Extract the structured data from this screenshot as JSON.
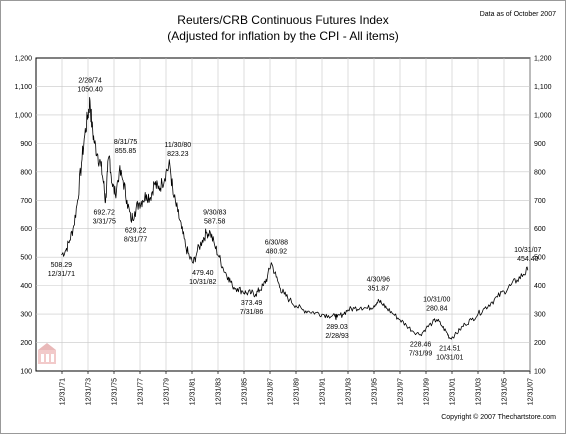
{
  "header": {
    "data_as_of": "Data as of October 2007",
    "copyright": "Copyright © 2007 Thechartstore.com"
  },
  "chart_data": {
    "type": "line",
    "title": "Reuters/CRB Continuous Futures Index",
    "subtitle": "(Adjusted for inflation by the CPI - All items)",
    "xlabel": "",
    "ylabel": "",
    "xlim": [
      1970.0,
      2008.0
    ],
    "ylim": [
      100,
      1200
    ],
    "y_ticks": [
      "1,200",
      "1,100",
      "1,000",
      "900",
      "800",
      "700",
      "600",
      "500",
      "400",
      "300",
      "200",
      "100"
    ],
    "x_ticks": [
      "12/31/71",
      "12/31/73",
      "12/31/75",
      "12/31/77",
      "12/31/79",
      "12/31/81",
      "12/31/83",
      "12/31/85",
      "12/31/87",
      "12/31/89",
      "12/31/91",
      "12/31/93",
      "12/31/95",
      "12/31/97",
      "12/31/99",
      "12/31/01",
      "12/31/03",
      "12/31/05",
      "12/31/07"
    ],
    "grid": true,
    "legend": "none",
    "line_color": "#000000",
    "series": [
      {
        "x": [
          1971.95,
          1972.3,
          1972.6,
          1972.9,
          1973.2,
          1973.5,
          1973.75,
          1974.0,
          1974.15,
          1974.3,
          1974.5,
          1974.75,
          1975.0,
          1975.2,
          1975.35,
          1975.5,
          1975.65,
          1975.85,
          1976.1,
          1976.4,
          1976.7,
          1977.0,
          1977.3,
          1977.6,
          1977.9,
          1978.2,
          1978.5,
          1978.8,
          1979.1,
          1979.4,
          1979.7,
          1980.0,
          1980.3,
          1980.55,
          1980.9,
          1981.2,
          1981.5,
          1981.8,
          1982.1,
          1982.4,
          1982.8,
          1983.1,
          1983.4,
          1983.75,
          1984.1,
          1984.4,
          1984.8,
          1985.1,
          1985.5,
          1985.9,
          1986.2,
          1986.57,
          1986.9,
          1987.2,
          1987.5,
          1987.8,
          1988.1,
          1988.48,
          1988.8,
          1989.1,
          1989.5,
          1990.0,
          1990.5,
          1991.0,
          1991.5,
          1992.0,
          1992.5,
          1993.0,
          1993.16,
          1993.6,
          1994.0,
          1994.5,
          1995.0,
          1995.5,
          1996.0,
          1996.33,
          1996.7,
          1997.0,
          1997.5,
          1998.0,
          1998.5,
          1999.0,
          1999.58,
          2000.0,
          2000.5,
          2000.83,
          2001.2,
          2001.6,
          2001.83,
          2002.2,
          2002.6,
          2003.0,
          2003.5,
          2004.0,
          2004.5,
          2005.0,
          2005.5,
          2006.0,
          2006.5,
          2007.0,
          2007.5,
          2007.83
        ],
        "y": [
          508,
          525,
          560,
          610,
          700,
          830,
          930,
          1000,
          1050,
          960,
          900,
          860,
          820,
          760,
          693,
          800,
          856,
          760,
          720,
          800,
          770,
          700,
          629,
          660,
          690,
          700,
          720,
          710,
          760,
          740,
          760,
          800,
          823,
          720,
          660,
          600,
          540,
          500,
          479,
          520,
          560,
          585,
          588,
          540,
          500,
          460,
          430,
          400,
          390,
          380,
          374,
          374,
          370,
          385,
          400,
          430,
          481,
          430,
          390,
          370,
          350,
          330,
          315,
          310,
          305,
          300,
          295,
          292,
          289,
          300,
          315,
          320,
          325,
          320,
          330,
          352,
          330,
          320,
          300,
          280,
          260,
          240,
          228,
          250,
          270,
          281,
          260,
          235,
          215,
          225,
          245,
          265,
          280,
          300,
          320,
          340,
          360,
          380,
          400,
          420,
          440,
          454
        ]
      }
    ],
    "annotations": [
      {
        "date": "12/31/71",
        "value": "508.29",
        "x": 1971.95,
        "y": 508.29,
        "pos": "below"
      },
      {
        "date": "2/28/74",
        "value": "1050.40",
        "x": 1974.16,
        "y": 1050.4,
        "pos": "above"
      },
      {
        "date": "3/31/75",
        "value": "692.72",
        "x": 1975.25,
        "y": 692.72,
        "pos": "below"
      },
      {
        "date": "8/31/75",
        "value": "855.85",
        "x": 1975.66,
        "y": 855.85,
        "pos": "right-above"
      },
      {
        "date": "8/31/77",
        "value": "629.22",
        "x": 1977.66,
        "y": 629.22,
        "pos": "below"
      },
      {
        "date": "11/30/80",
        "value": "823.23",
        "x": 1980.91,
        "y": 823.23,
        "pos": "above"
      },
      {
        "date": "10/31/82",
        "value": "479.40",
        "x": 1982.83,
        "y": 479.4,
        "pos": "below"
      },
      {
        "date": "9/30/83",
        "value": "587.58",
        "x": 1983.75,
        "y": 587.58,
        "pos": "above"
      },
      {
        "date": "7/31/86",
        "value": "373.49",
        "x": 1986.58,
        "y": 373.49,
        "pos": "below"
      },
      {
        "date": "6/30/88",
        "value": "480.92",
        "x": 1988.49,
        "y": 480.92,
        "pos": "above"
      },
      {
        "date": "2/28/93",
        "value": "289.03",
        "x": 1993.16,
        "y": 289.03,
        "pos": "below"
      },
      {
        "date": "4/30/96",
        "value": "351.87",
        "x": 1996.33,
        "y": 351.87,
        "pos": "above"
      },
      {
        "date": "7/31/99",
        "value": "228.46",
        "x": 1999.58,
        "y": 228.46,
        "pos": "below"
      },
      {
        "date": "10/31/00",
        "value": "280.84",
        "x": 2000.83,
        "y": 280.84,
        "pos": "above"
      },
      {
        "date": "10/31/01",
        "value": "214.51",
        "x": 2001.83,
        "y": 214.51,
        "pos": "below"
      },
      {
        "date": "10/31/07",
        "value": "454.40",
        "x": 2007.83,
        "y": 454.4,
        "pos": "above"
      }
    ]
  }
}
